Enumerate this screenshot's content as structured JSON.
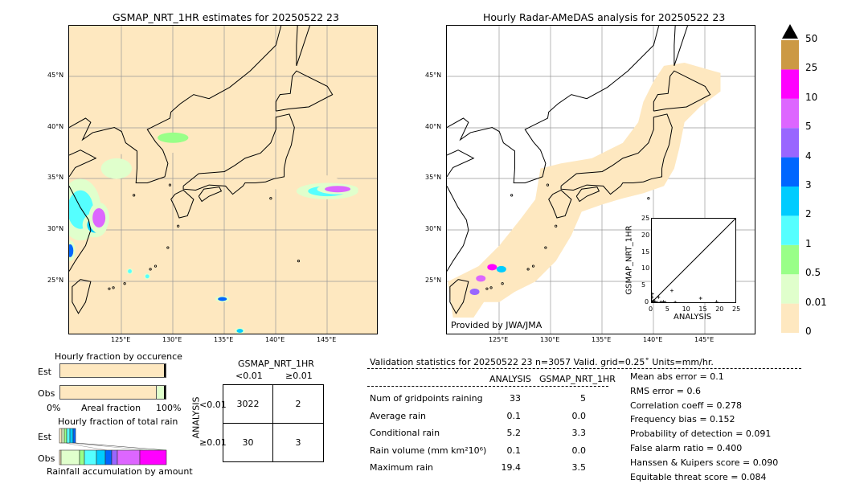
{
  "left_map": {
    "title": "GSMAP_NRT_1HR estimates for 20250522 23"
  },
  "right_map": {
    "title": "Hourly Radar-AMeDAS analysis for 20250522 23",
    "credit": "Provided by JWA/JMA"
  },
  "lat_ticks": [
    "45°N",
    "40°N",
    "35°N",
    "30°N",
    "25°N"
  ],
  "lon_ticks": [
    "125°E",
    "130°E",
    "135°E",
    "140°E",
    "145°E"
  ],
  "colorbar": {
    "labels": [
      "0",
      "0.01",
      "0.5",
      "1",
      "2",
      "3",
      "4",
      "5",
      "10",
      "25",
      "50"
    ],
    "colors": [
      "#fee8c0",
      "#e0ffcc",
      "#99ff88",
      "#55ffff",
      "#00ccff",
      "#0066ff",
      "#9966ff",
      "#dd66ff",
      "#ff00ff",
      "#cc9944"
    ],
    "extend": "max"
  },
  "chart_data": {
    "type": "scatter",
    "xlabel": "ANALYSIS",
    "ylabel": "GSMAP_NRT_1HR",
    "xlim": [
      0,
      25
    ],
    "ylim": [
      0,
      25
    ],
    "xticks": [
      "0",
      "5",
      "10",
      "15",
      "20",
      "25"
    ],
    "yticks": [
      "0",
      "5",
      "10",
      "15",
      "20",
      "25"
    ],
    "points": [
      [
        0.1,
        0
      ],
      [
        0.2,
        0.3
      ],
      [
        0.3,
        0
      ],
      [
        0.5,
        0.5
      ],
      [
        0.8,
        0
      ],
      [
        1,
        0.1
      ],
      [
        1.5,
        0
      ],
      [
        2,
        1.5
      ],
      [
        2.5,
        0
      ],
      [
        3,
        0
      ],
      [
        3.5,
        0.2
      ],
      [
        4,
        0
      ],
      [
        6,
        3.5
      ],
      [
        7,
        0
      ],
      [
        14.6,
        1.2
      ],
      [
        19.4,
        0.2
      ],
      [
        0.1,
        1.5
      ],
      [
        0.2,
        2.5
      ]
    ]
  },
  "occurrence": {
    "title": "Hourly fraction by occurence",
    "est": "Est",
    "obs": "Obs",
    "x0": "0%",
    "xmid": "Areal fraction",
    "x1": "100%"
  },
  "total_rain": {
    "title": "Hourly fraction of total rain",
    "est": "Est",
    "obs": "Obs",
    "xlabel": "Rainfall accumulation by amount"
  },
  "contingency": {
    "col_title": "GSMAP_NRT_1HR",
    "col1": "<0.01",
    "col2": "≥0.01",
    "row_title": "ANALYSIS",
    "row1": "<0.01",
    "row2": "≥0.01",
    "cells": [
      "3022",
      "2",
      "30",
      "3"
    ]
  },
  "validation": {
    "header": "Validation statistics for 20250522 23  n=3057 Valid. grid=0.25˚ Units=mm/hr.",
    "col1": "ANALYSIS",
    "col2": "GSMAP_NRT_1HR",
    "rows": [
      {
        "label": "Num of gridpoints raining",
        "a": "33",
        "g": "5"
      },
      {
        "label": "Average rain",
        "a": "0.1",
        "g": "0.0"
      },
      {
        "label": "Conditional rain",
        "a": "5.2",
        "g": "3.3"
      },
      {
        "label": "Rain volume (mm km²10⁶)",
        "a": "0.1",
        "g": "0.0"
      },
      {
        "label": "Maximum rain",
        "a": "19.4",
        "g": "3.5"
      }
    ],
    "scores": [
      "Mean abs error =    0.1",
      "RMS error =    0.6",
      "Correlation coeff =  0.278",
      "Frequency bias =  0.152",
      "Probability of detection =  0.091",
      "False alarm ratio =  0.400",
      "Hanssen & Kuipers score =  0.090",
      "Equitable threat score =  0.084"
    ]
  }
}
